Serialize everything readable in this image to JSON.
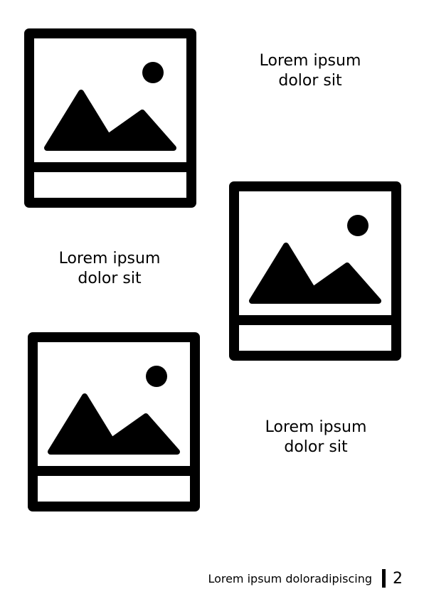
{
  "content": {
    "photos": [
      {
        "icon": "image-placeholder-icon"
      },
      {
        "icon": "image-placeholder-icon"
      },
      {
        "icon": "image-placeholder-icon"
      }
    ],
    "captions": [
      "Lorem ipsum\ndolor sit",
      "Lorem ipsum\ndolor sit",
      "Lorem ipsum\ndolor sit"
    ]
  },
  "footer": {
    "text": "Lorem ipsum doloradipiscing",
    "page_number": "2"
  },
  "colors": {
    "ink": "#000000",
    "paper": "#ffffff"
  }
}
